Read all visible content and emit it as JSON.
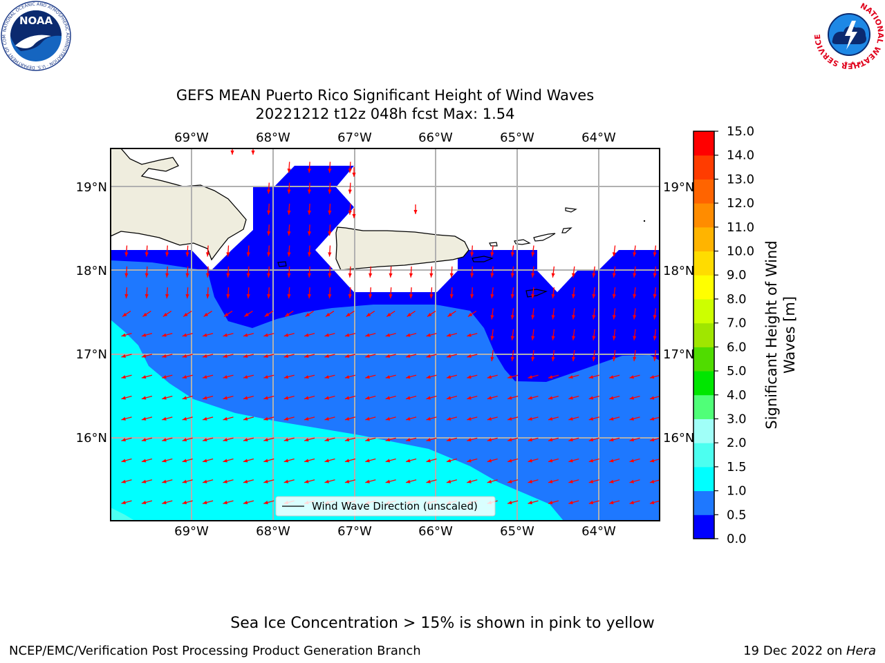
{
  "header": {
    "title_line1": "GEFS MEAN Puerto Rico Significant Height of Wind Waves",
    "title_line2": "20221212 t12z 048h fcst   Max: 1.54",
    "noaa_logo_text": "NOAA",
    "noaa_ring_text": "NATIONAL OCEANIC AND ATMOSPHERIC ADMINISTRATION · U.S. DEPARTMENT OF COMMERCE",
    "nws_ring_text": "NATIONAL WEATHER SERVICE"
  },
  "map": {
    "lon_labels": [
      "69°W",
      "68°W",
      "67°W",
      "66°W",
      "65°W",
      "64°W"
    ],
    "lat_labels": [
      "19°N",
      "18°N",
      "17°N",
      "16°N"
    ],
    "legend_label": "Wind Wave Direction (unscaled)",
    "arrow_color": "#ff0000",
    "land_color": "#efedde"
  },
  "colorbar": {
    "label_line1": "Significant Height of Wind",
    "label_line2": "Waves [m]",
    "ticks": [
      "0.0",
      "0.5",
      "1.0",
      "1.5",
      "2.0",
      "3.0",
      "4.0",
      "5.0",
      "6.0",
      "7.0",
      "8.0",
      "9.0",
      "10.0",
      "11.0",
      "12.0",
      "13.0",
      "14.0",
      "15.0"
    ],
    "colors": [
      "#0000ff",
      "#1e78ff",
      "#00ffff",
      "#4cfff0",
      "#a0fff8",
      "#50ff78",
      "#00e600",
      "#50dc00",
      "#a0e600",
      "#cdff00",
      "#ffff00",
      "#ffdc00",
      "#ffb400",
      "#ff8c00",
      "#ff6400",
      "#ff3c00",
      "#ff0000"
    ]
  },
  "chart_data": {
    "type": "contour-map",
    "variable": "Significant Height of Wind Waves [m]",
    "max": 1.54,
    "lon_range": [
      -70.0,
      -63.25
    ],
    "lat_range": [
      15.0,
      19.47
    ],
    "levels": [
      0.0,
      0.5,
      1.0,
      1.5,
      2.0,
      3.0,
      4.0,
      5.0,
      6.0,
      7.0,
      8.0,
      9.0,
      10.0,
      11.0,
      12.0,
      13.0,
      14.0,
      15.0
    ],
    "wave_direction": "northern waters: southward; southern waters: toward west-southwest",
    "regions": [
      {
        "range": "0.0-0.5",
        "area": "near-shore waters around Puerto Rico, Mona Passage and Virgin Islands, north of about 17.3°N"
      },
      {
        "range": "0.5-1.0",
        "area": "central Caribbean band between about 16°N and 17.5°N"
      },
      {
        "range": "1.0-1.5",
        "area": "southwest waters, south of about 16.5°N"
      }
    ]
  },
  "footer": {
    "ice_note": "Sea Ice Concentration > 15% is shown in pink to yellow",
    "left": "NCEP/EMC/Verification Post Processing Product Generation Branch",
    "right_date": "19 Dec 2022 on ",
    "right_host": "Hera"
  }
}
